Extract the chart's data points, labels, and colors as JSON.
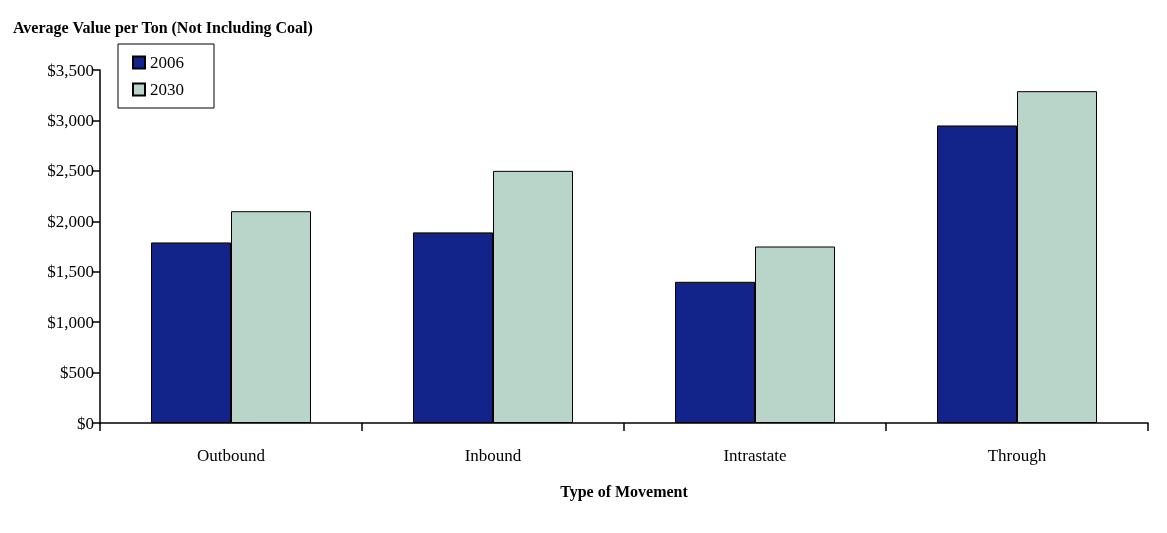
{
  "chart_data": {
    "type": "bar",
    "title": "Average Value per Ton (Not Including Coal)",
    "xlabel": "Type of Movement",
    "categories": [
      "Outbound",
      "Inbound",
      "Intrastate",
      "Through"
    ],
    "series": [
      {
        "name": "2006",
        "color": "#12238a",
        "values": [
          1790,
          1890,
          1400,
          2950
        ]
      },
      {
        "name": "2030",
        "color": "#b9d5c9",
        "values": [
          2100,
          2500,
          1750,
          3290
        ]
      }
    ],
    "ylim": [
      0,
      3500
    ],
    "yticks": [
      {
        "value": 0,
        "label": "$0"
      },
      {
        "value": 500,
        "label": "$500"
      },
      {
        "value": 1000,
        "label": "$1,000"
      },
      {
        "value": 1500,
        "label": "$1,500"
      },
      {
        "value": 2000,
        "label": "$2,000"
      },
      {
        "value": 2500,
        "label": "$2,500"
      },
      {
        "value": 3000,
        "label": "$3,000"
      },
      {
        "value": 3500,
        "label": "$3,500"
      }
    ],
    "grid": false,
    "legend": "top left"
  }
}
